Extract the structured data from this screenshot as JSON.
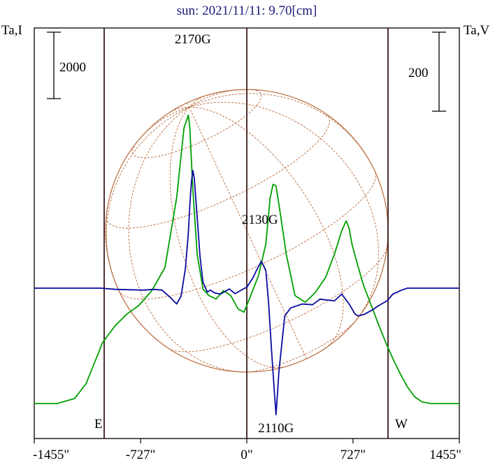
{
  "title": "sun: 2021/11/11: 9.70[cm]",
  "left_axis_label": "Ta,I",
  "right_axis_label": "Ta,V",
  "left_scale_label": "2000",
  "right_scale_label": "200",
  "east_label": "E",
  "west_label": "W",
  "colors": {
    "title": "#1a1a7a",
    "frame": "#000000",
    "limb_lines": "#3a1a1a",
    "intensity": "#00a000",
    "polarization": "#0a0aa0",
    "disk": "#b86a3c"
  },
  "chart_data": {
    "type": "line",
    "x_unit": "arcsec",
    "xlim": [
      -1455,
      1455
    ],
    "x_ticks": [
      -1455,
      -727,
      0,
      727,
      1455
    ],
    "x_tick_labels": [
      "-1455\"",
      "-727\"",
      "0\"",
      "727\"",
      "1455\""
    ],
    "solar_limb_x": [
      -980,
      980
    ],
    "center_x": 0,
    "annotations": [
      {
        "text": "2170G",
        "x": -370
      },
      {
        "text": "2130G",
        "x": 90
      },
      {
        "text": "2110G",
        "x": 200
      }
    ],
    "series": [
      {
        "series_key": "intensity",
        "x": [
          -1455,
          -1300,
          -1180,
          -1100,
          -1050,
          -1010,
          -990,
          -960,
          -900,
          -820,
          -740,
          -650,
          -560,
          -480,
          -430,
          -400,
          -390,
          -370,
          -340,
          -300,
          -260,
          -210,
          -160,
          -110,
          -60,
          -20,
          0,
          40,
          80,
          130,
          160,
          180,
          200,
          230,
          270,
          330,
          400,
          470,
          540,
          600,
          650,
          680,
          700,
          720,
          760,
          800,
          850,
          900,
          950,
          1000,
          1050,
          1100,
          1150,
          1200,
          1260,
          1300,
          1340,
          1400,
          1455
        ],
        "values": [
          0,
          0,
          150,
          600,
          1150,
          1580,
          1820,
          2000,
          2350,
          2700,
          2950,
          3400,
          4100,
          6200,
          8300,
          8680,
          8300,
          6500,
          4500,
          3450,
          3250,
          3150,
          3400,
          3250,
          2850,
          2750,
          2950,
          3400,
          3850,
          4800,
          6200,
          6600,
          6550,
          5700,
          4500,
          3250,
          3050,
          3350,
          3800,
          4500,
          5200,
          5500,
          5280,
          4800,
          4150,
          3550,
          2980,
          2400,
          1850,
          1350,
          900,
          500,
          200,
          50,
          0,
          0,
          0,
          0,
          0
        ]
      },
      {
        "series_key": "polarization",
        "x": [
          -1455,
          -1200,
          -1000,
          -900,
          -800,
          -700,
          -640,
          -580,
          -520,
          -480,
          -450,
          -420,
          -400,
          -390,
          -380,
          -370,
          -360,
          -340,
          -320,
          -300,
          -270,
          -250,
          -220,
          -180,
          -120,
          -80,
          -20,
          0,
          40,
          80,
          100,
          130,
          150,
          170,
          190,
          200,
          220,
          260,
          300,
          380,
          450,
          500,
          600,
          650,
          700,
          740,
          760,
          800,
          860,
          900,
          960,
          1000,
          1060,
          1100,
          1200,
          1300,
          1455
        ],
        "values": [
          0,
          0,
          0,
          -3,
          -4,
          -5,
          -3,
          -5,
          -25,
          -40,
          -20,
          50,
          140,
          210,
          265,
          298,
          280,
          180,
          80,
          15,
          -10,
          -5,
          -12,
          -15,
          -2,
          -14,
          -1,
          2,
          25,
          55,
          68,
          45,
          -40,
          -160,
          -270,
          -320,
          -210,
          -70,
          -50,
          -40,
          -42,
          -28,
          -32,
          -15,
          -40,
          -65,
          -70,
          -67,
          -55,
          -45,
          -32,
          -15,
          -5,
          0,
          0,
          0,
          0
        ]
      }
    ]
  }
}
